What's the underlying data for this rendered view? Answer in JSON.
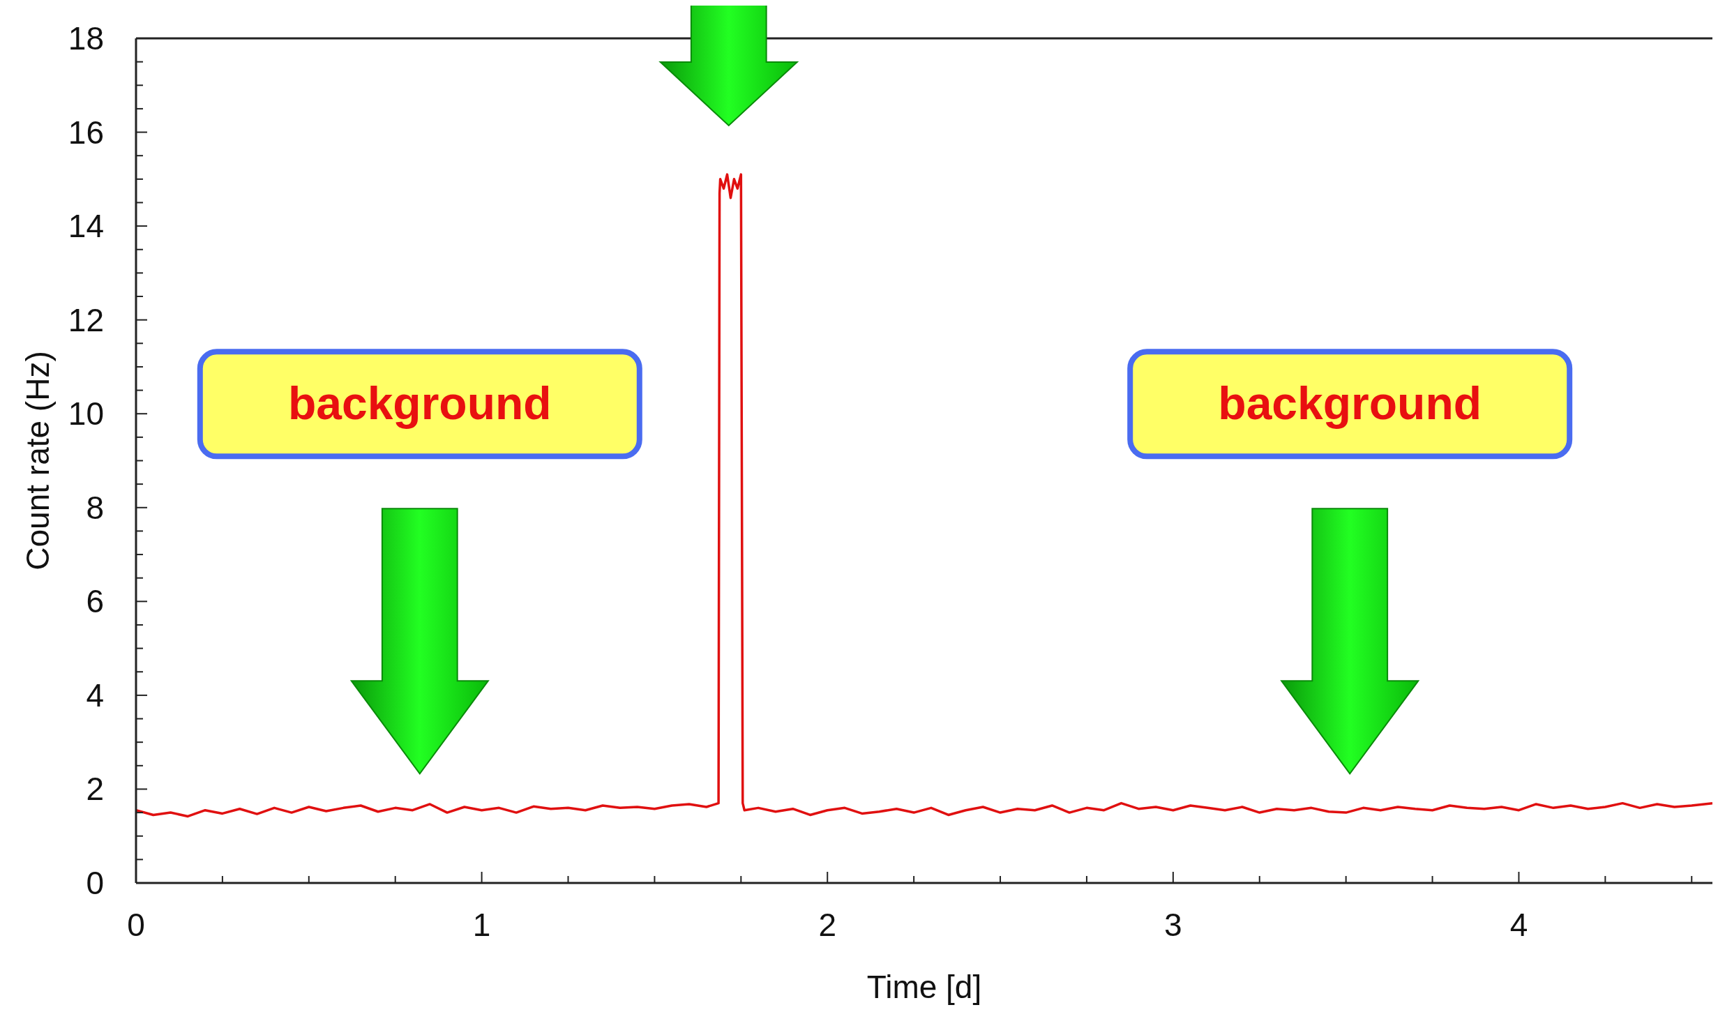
{
  "chart_data": {
    "type": "line",
    "xlabel": "Time [d]",
    "ylabel": "Count rate (Hz)",
    "xlim": [
      0,
      4.56
    ],
    "ylim": [
      0,
      18
    ],
    "xticks": [
      0,
      {
        "value": 0.25,
        "label": null
      },
      {
        "value": 0.5,
        "label": null
      },
      {
        "value": 0.75,
        "label": null
      },
      1,
      {
        "value": 1.25,
        "label": null
      },
      {
        "value": 1.5,
        "label": null
      },
      {
        "value": 1.75,
        "label": null
      },
      2,
      {
        "value": 2.25,
        "label": null
      },
      {
        "value": 2.5,
        "label": null
      },
      {
        "value": 2.75,
        "label": null
      },
      3,
      {
        "value": 3.25,
        "label": null
      },
      {
        "value": 3.5,
        "label": null
      },
      {
        "value": 3.75,
        "label": null
      },
      4,
      {
        "value": 4.25,
        "label": null
      },
      {
        "value": 4.5,
        "label": null
      }
    ],
    "yticks": [
      0,
      {
        "value": 0.5,
        "label": null
      },
      {
        "value": 1,
        "label": null
      },
      {
        "value": 1.5,
        "label": null
      },
      2,
      {
        "value": 2.5,
        "label": null
      },
      {
        "value": 3,
        "label": null
      },
      {
        "value": 3.5,
        "label": null
      },
      4,
      {
        "value": 4.5,
        "label": null
      },
      {
        "value": 5,
        "label": null
      },
      {
        "value": 5.5,
        "label": null
      },
      6,
      {
        "value": 6.5,
        "label": null
      },
      {
        "value": 7,
        "label": null
      },
      {
        "value": 7.5,
        "label": null
      },
      8,
      {
        "value": 8.5,
        "label": null
      },
      {
        "value": 9,
        "label": null
      },
      {
        "value": 9.5,
        "label": null
      },
      10,
      {
        "value": 10.5,
        "label": null
      },
      {
        "value": 11,
        "label": null
      },
      {
        "value": 11.5,
        "label": null
      },
      12,
      {
        "value": 12.5,
        "label": null
      },
      {
        "value": 13,
        "label": null
      },
      {
        "value": 13.5,
        "label": null
      },
      14,
      {
        "value": 14.5,
        "label": null
      },
      {
        "value": 15,
        "label": null
      },
      {
        "value": 15.5,
        "label": null
      },
      16,
      {
        "value": 16.5,
        "label": null
      },
      {
        "value": 17,
        "label": null
      },
      {
        "value": 17.5,
        "label": null
      },
      18
    ],
    "grid": false,
    "line_style": "solid",
    "marker": "none",
    "series": [
      {
        "color": "#e01010",
        "x": [
          0,
          0.05,
          0.1,
          0.15,
          0.2,
          0.25,
          0.3,
          0.35,
          0.4,
          0.45,
          0.5,
          0.55,
          0.6,
          0.65,
          0.7,
          0.75,
          0.8,
          0.85,
          0.9,
          0.95,
          1,
          1.05,
          1.1,
          1.15,
          1.2,
          1.25,
          1.3,
          1.35,
          1.4,
          1.45,
          1.5,
          1.55,
          1.6,
          1.65,
          1.685,
          1.688,
          1.69,
          1.7,
          1.71,
          1.72,
          1.73,
          1.74,
          1.75,
          1.755,
          1.76,
          1.8,
          1.85,
          1.9,
          1.95,
          2,
          2.05,
          2.1,
          2.15,
          2.2,
          2.25,
          2.3,
          2.35,
          2.4,
          2.45,
          2.5,
          2.55,
          2.6,
          2.65,
          2.7,
          2.75,
          2.8,
          2.85,
          2.9,
          2.95,
          3,
          3.05,
          3.1,
          3.15,
          3.2,
          3.25,
          3.3,
          3.35,
          3.4,
          3.45,
          3.5,
          3.55,
          3.6,
          3.65,
          3.7,
          3.75,
          3.8,
          3.85,
          3.9,
          3.95,
          4,
          4.05,
          4.1,
          4.15,
          4.2,
          4.25,
          4.3,
          4.35,
          4.4,
          4.45,
          4.5,
          4.56
        ],
        "values": [
          1.55,
          1.45,
          1.5,
          1.42,
          1.55,
          1.48,
          1.58,
          1.47,
          1.6,
          1.5,
          1.62,
          1.53,
          1.6,
          1.65,
          1.52,
          1.6,
          1.55,
          1.68,
          1.5,
          1.62,
          1.55,
          1.6,
          1.5,
          1.63,
          1.58,
          1.6,
          1.55,
          1.65,
          1.6,
          1.62,
          1.58,
          1.65,
          1.68,
          1.62,
          1.7,
          14.7,
          15,
          14.8,
          15.1,
          14.6,
          15,
          14.8,
          15.1,
          1.7,
          1.55,
          1.6,
          1.52,
          1.58,
          1.45,
          1.55,
          1.6,
          1.48,
          1.52,
          1.58,
          1.5,
          1.6,
          1.45,
          1.55,
          1.62,
          1.5,
          1.58,
          1.55,
          1.65,
          1.5,
          1.6,
          1.55,
          1.7,
          1.58,
          1.62,
          1.55,
          1.65,
          1.6,
          1.55,
          1.62,
          1.5,
          1.58,
          1.55,
          1.6,
          1.52,
          1.5,
          1.6,
          1.55,
          1.62,
          1.58,
          1.55,
          1.65,
          1.6,
          1.58,
          1.62,
          1.55,
          1.68,
          1.6,
          1.65,
          1.58,
          1.62,
          1.7,
          1.6,
          1.68,
          1.62,
          1.65,
          1.7
        ]
      }
    ],
    "annotations": [
      "background",
      "background"
    ]
  }
}
